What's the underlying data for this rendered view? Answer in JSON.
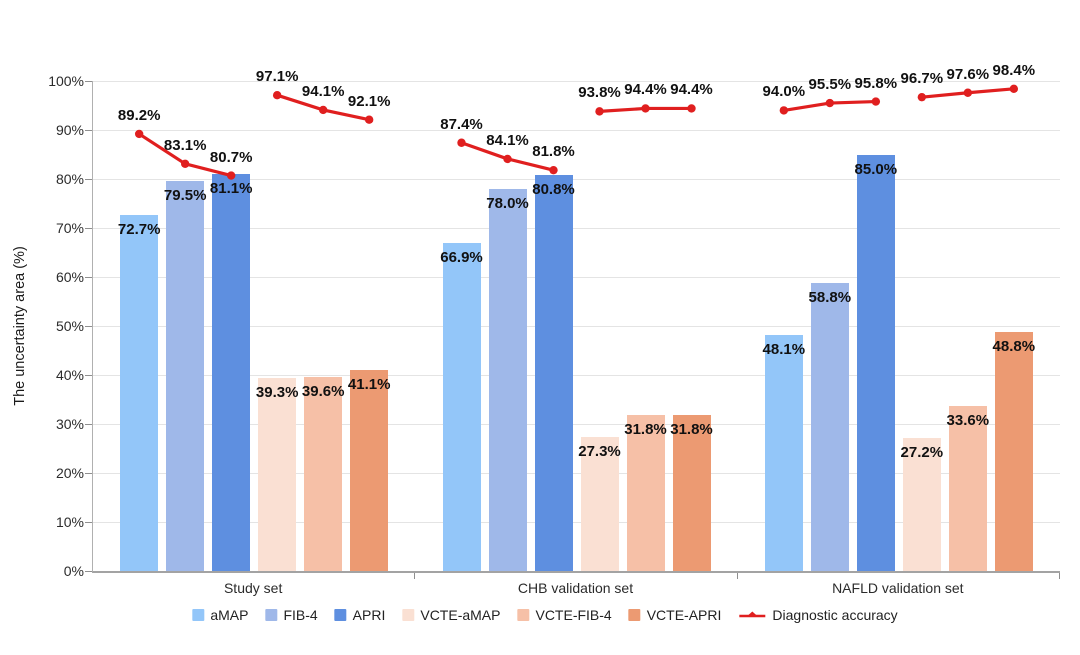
{
  "chart_data": {
    "type": "bar",
    "title": "",
    "xlabel": "",
    "ylabel": "The uncertainty area (%)",
    "ylim": [
      0,
      100
    ],
    "ytick_step": 10,
    "ytick_suffix": "%",
    "grid": true,
    "legend_position": "bottom",
    "categories": [
      "Study set",
      "CHB validation set",
      "NAFLD validation set"
    ],
    "series": [
      {
        "name": "aMAP",
        "color": "#93C6F9",
        "values": [
          72.7,
          66.9,
          48.1
        ]
      },
      {
        "name": "FIB-4",
        "color": "#9FB8E9",
        "values": [
          79.5,
          78.0,
          58.8
        ]
      },
      {
        "name": "APRI",
        "color": "#5E8FE0",
        "values": [
          81.1,
          80.8,
          85.0
        ]
      },
      {
        "name": "VCTE-aMAP",
        "color": "#FAE0D3",
        "values": [
          39.3,
          27.3,
          27.2
        ]
      },
      {
        "name": "VCTE-FIB-4",
        "color": "#F6C0A7",
        "values": [
          39.6,
          31.8,
          33.6
        ]
      },
      {
        "name": "VCTE-APRI",
        "color": "#EC9A72",
        "values": [
          41.1,
          31.8,
          48.8
        ]
      }
    ],
    "line_series": {
      "name": "Diagnostic accuracy",
      "color": "#E01F1F",
      "groups": [
        {
          "category": "Study set",
          "segments": [
            [
              89.2,
              83.1,
              80.7
            ],
            [
              97.1,
              94.1,
              92.1
            ]
          ]
        },
        {
          "category": "CHB validation set",
          "segments": [
            [
              87.4,
              84.1,
              81.8
            ],
            [
              93.8,
              94.4,
              94.4
            ]
          ]
        },
        {
          "category": "NAFLD validation set",
          "segments": [
            [
              94.0,
              95.5,
              95.8
            ],
            [
              96.7,
              97.6,
              98.4
            ]
          ]
        }
      ]
    }
  }
}
